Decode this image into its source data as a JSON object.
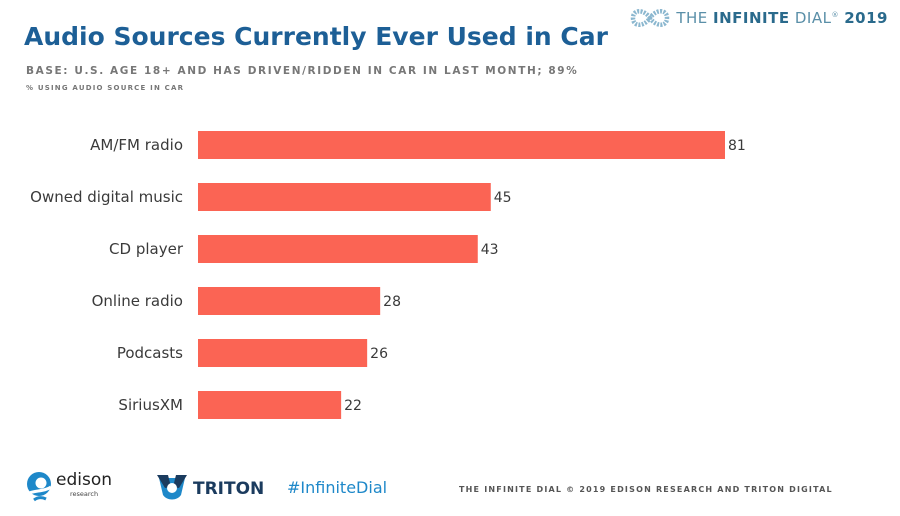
{
  "header": {
    "brand_prefix": "THE ",
    "brand_bold": "INFINITE",
    "brand_suffix": " DIAL",
    "brand_reg": "®",
    "brand_year": "2019",
    "title": "Audio Sources Currently Ever Used in Car",
    "base": "BASE: U.S. AGE 18+ AND HAS DRIVEN/RIDDEN IN CAR IN LAST MONTH; 89%",
    "unit": "% USING AUDIO SOURCE IN CAR"
  },
  "chart_data": {
    "type": "bar",
    "orientation": "horizontal",
    "categories": [
      "AM/FM radio",
      "Owned digital music",
      "CD player",
      "Online radio",
      "Podcasts",
      "SiriusXM"
    ],
    "values": [
      81,
      45,
      43,
      28,
      26,
      22
    ],
    "title": "Audio Sources Currently Ever Used in Car",
    "xlabel": "",
    "ylabel": "% USING AUDIO SOURCE IN CAR",
    "xlim": [
      0,
      81
    ],
    "grid": false,
    "bar_color": "#fb6454"
  },
  "footer": {
    "edison_word": "edison",
    "edison_sub": "research",
    "triton_word": "TRITON",
    "hashtag": "#InfiniteDial",
    "copyright": "THE INFINITE DIAL   © 2019 EDISON RESEARCH AND TRITON DIGITAL"
  },
  "colors": {
    "title": "#1d5f96",
    "accent_blue": "#1e88c9",
    "bar": "#fb6454"
  },
  "icons": [
    "infinity-logo-icon",
    "edison-logo-icon",
    "triton-logo-icon"
  ]
}
